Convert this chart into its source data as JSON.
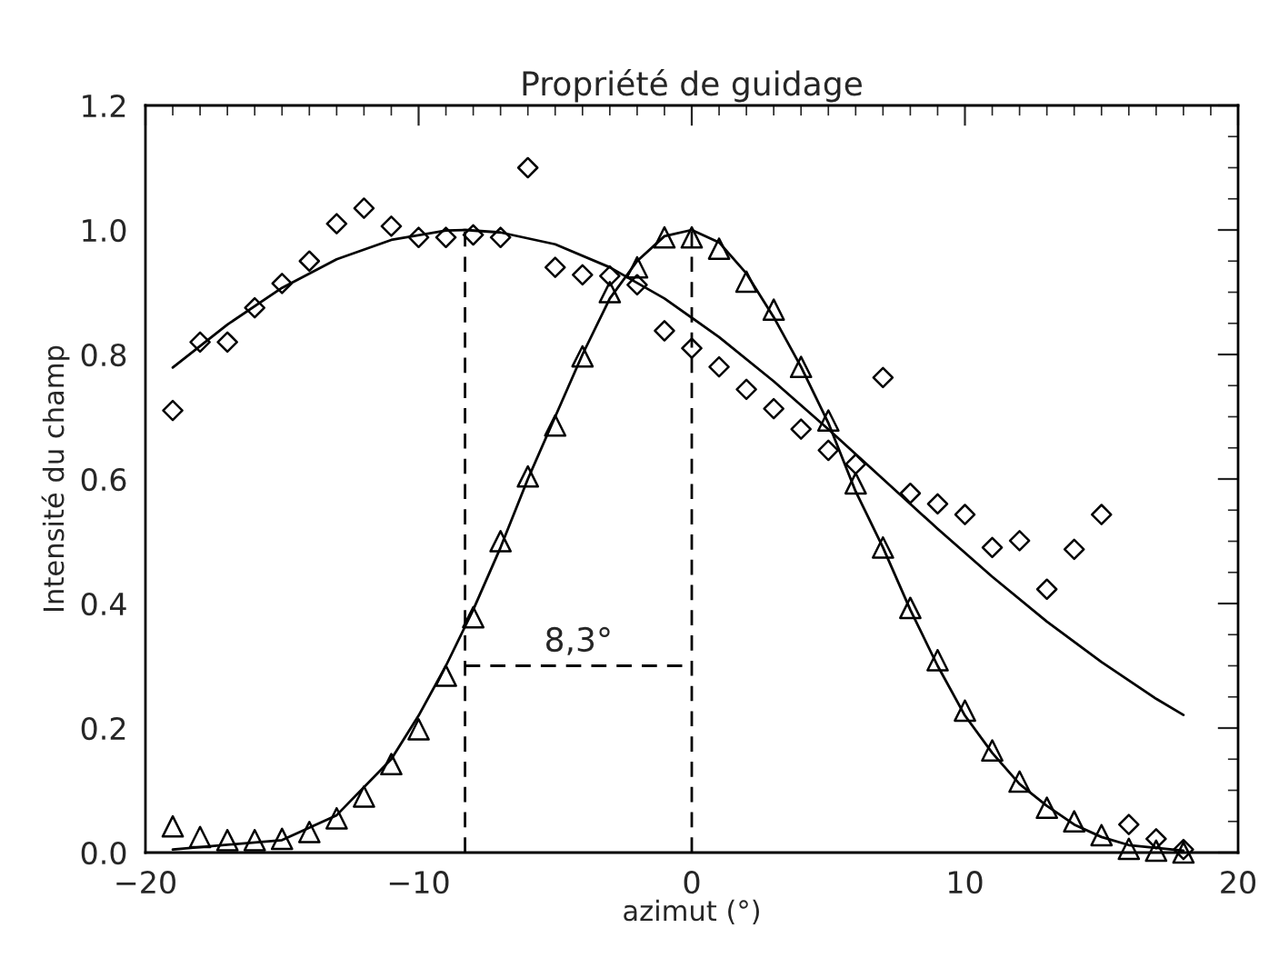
{
  "chart_data": {
    "type": "scatter",
    "title": "Propriété de guidage",
    "xlabel": "azimut (°)",
    "ylabel": "Intensité du champ",
    "xlim": [
      -20,
      20
    ],
    "xticks": [
      {
        "value": -20,
        "label": "−20"
      },
      {
        "value": -10,
        "label": "−10"
      },
      0,
      10,
      20
    ],
    "ylim": [
      0,
      1.2
    ],
    "yticks": [
      {
        "value": 0,
        "label": "0.0"
      },
      {
        "value": 0.2,
        "label": "0.2"
      },
      {
        "value": 0.4,
        "label": "0.4"
      },
      {
        "value": 0.6,
        "label": "0.6"
      },
      {
        "value": 0.8,
        "label": "0.8"
      },
      {
        "value": 1.0,
        "label": "1.0"
      },
      {
        "value": 1.2,
        "label": "1.2"
      }
    ],
    "grid": false,
    "legend": false,
    "series": [
      {
        "marker": "diamond",
        "color": "#000000",
        "x": [
          -19,
          -18,
          -17,
          -16,
          -15,
          -14,
          -13,
          -12,
          -11,
          -10,
          -9,
          -8,
          -7,
          -6,
          -5,
          -4,
          -3,
          -2,
          -1,
          0,
          1,
          2,
          3,
          4,
          5,
          6,
          7,
          8,
          9,
          10,
          11,
          12,
          13,
          14,
          15,
          16,
          17,
          18
        ],
        "values": [
          0.71,
          0.82,
          0.82,
          0.875,
          0.914,
          0.95,
          1.01,
          1.035,
          1.006,
          0.988,
          0.988,
          0.992,
          0.988,
          1.1,
          0.94,
          0.928,
          0.926,
          0.912,
          0.838,
          0.81,
          0.78,
          0.744,
          0.713,
          0.68,
          0.646,
          0.624,
          0.763,
          0.577,
          0.56,
          0.543,
          0.49,
          0.501,
          0.423,
          0.487,
          0.543,
          0.045,
          0.022,
          0.005
        ]
      },
      {
        "marker": "triangle",
        "color": "#000000",
        "x": [
          -19,
          -18,
          -17,
          -16,
          -15,
          -14,
          -13,
          -12,
          -11,
          -10,
          -9,
          -8,
          -7,
          -6,
          -5,
          -4,
          -3,
          -2,
          -1,
          0,
          1,
          2,
          3,
          4,
          5,
          6,
          7,
          8,
          9,
          10,
          11,
          12,
          13,
          14,
          15,
          16,
          17,
          18
        ],
        "values": [
          0.042,
          0.025,
          0.02,
          0.02,
          0.022,
          0.033,
          0.055,
          0.09,
          0.142,
          0.198,
          0.284,
          0.378,
          0.5,
          0.604,
          0.686,
          0.797,
          0.9,
          0.94,
          0.988,
          0.988,
          0.97,
          0.917,
          0.872,
          0.78,
          0.694,
          0.593,
          0.49,
          0.393,
          0.309,
          0.228,
          0.164,
          0.114,
          0.072,
          0.05,
          0.028,
          0.006,
          0.003,
          0.0
        ]
      },
      {
        "type": "line",
        "marker": "none",
        "line_style": "solid",
        "color": "#000000",
        "x": [
          -19,
          -17,
          -15,
          -13,
          -11,
          -9,
          -8.3,
          -7,
          -5,
          -3,
          -1,
          1,
          3,
          5,
          7,
          9,
          11,
          13,
          15,
          17,
          18
        ],
        "values": [
          0.779,
          0.848,
          0.907,
          0.953,
          0.984,
          0.999,
          1.0,
          0.996,
          0.977,
          0.94,
          0.89,
          0.828,
          0.757,
          0.68,
          0.6,
          0.52,
          0.443,
          0.371,
          0.306,
          0.247,
          0.221
        ]
      },
      {
        "type": "line",
        "marker": "none",
        "line_style": "solid",
        "color": "#000000",
        "x": [
          -19,
          -15,
          -13,
          -11,
          -10,
          -9,
          -8,
          -7,
          -6,
          -5,
          -4,
          -3,
          -2,
          -1,
          0,
          1,
          2,
          3,
          4,
          5,
          6,
          7,
          8,
          9,
          10,
          11,
          12,
          13,
          14,
          15,
          16,
          18
        ],
        "values": [
          0.005,
          0.02,
          0.06,
          0.15,
          0.22,
          0.3,
          0.39,
          0.49,
          0.6,
          0.7,
          0.8,
          0.89,
          0.95,
          0.99,
          1.0,
          0.98,
          0.93,
          0.86,
          0.78,
          0.69,
          0.58,
          0.49,
          0.39,
          0.3,
          0.22,
          0.16,
          0.11,
          0.075,
          0.045,
          0.025,
          0.012,
          0.003
        ]
      },
      {
        "type": "line",
        "marker": "none",
        "line_style": "dashed",
        "color": "#000000",
        "x": [
          -8.3,
          -8.3
        ],
        "values": [
          0,
          1.0
        ]
      },
      {
        "type": "line",
        "marker": "none",
        "line_style": "dashed",
        "color": "#000000",
        "x": [
          0,
          0
        ],
        "values": [
          0,
          1.0
        ]
      },
      {
        "type": "line",
        "marker": "none",
        "line_style": "dashed",
        "color": "#000000",
        "x": [
          -8.3,
          0
        ],
        "values": [
          0.3,
          0.3
        ]
      }
    ],
    "annotations": [
      {
        "text": "8,3°",
        "x": -4.15,
        "y": 0.3
      }
    ]
  }
}
